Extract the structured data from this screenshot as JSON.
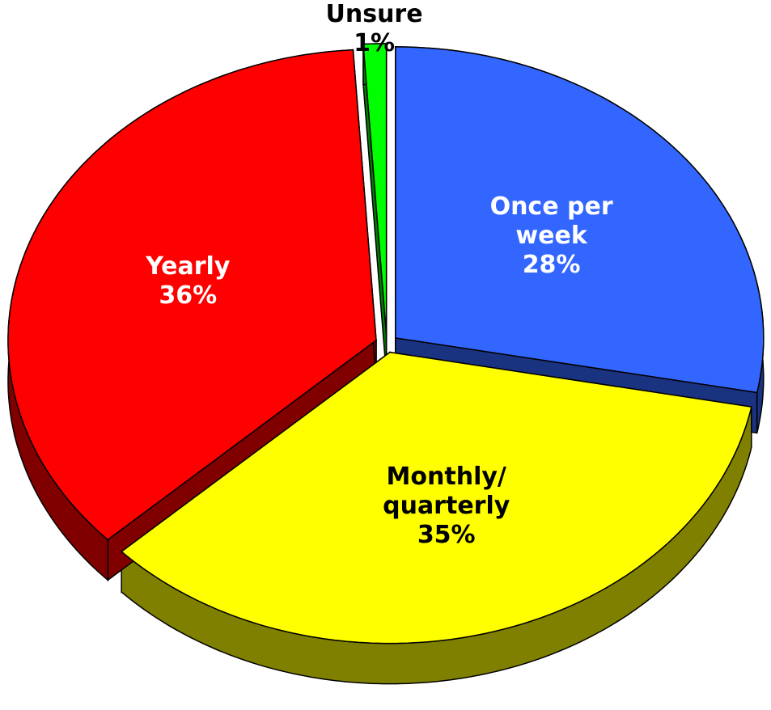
{
  "chart_data": {
    "type": "pie3d",
    "categories": [
      "Once per week",
      "Monthly/ quarterly",
      "Yearly",
      "Unsure"
    ],
    "values": [
      28,
      35,
      36,
      1
    ],
    "value_labels": [
      "28%",
      "35%",
      "36%",
      "1%"
    ],
    "colors": [
      "#3366ff",
      "#ffff00",
      "#ff0000",
      "#00ff00"
    ],
    "side_colors": [
      "#1a3380",
      "#808000",
      "#800000",
      "#008000"
    ]
  }
}
